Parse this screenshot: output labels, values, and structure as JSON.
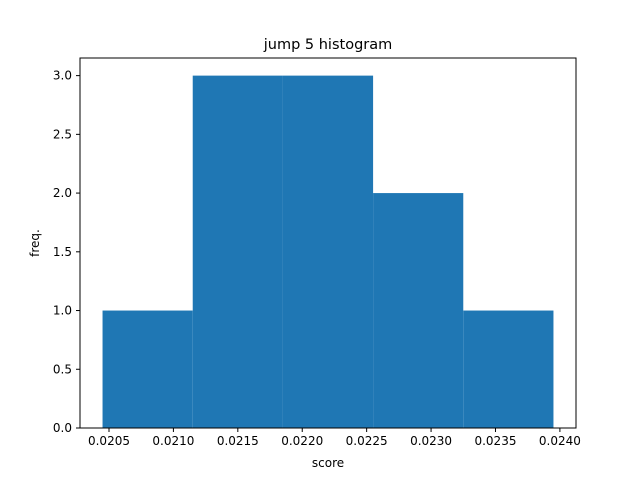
{
  "chart_data": {
    "type": "bar",
    "title": "jump 5 histogram",
    "xlabel": "score",
    "ylabel": "freq.",
    "bins": [
      {
        "start": 0.02045,
        "end": 0.02115,
        "count": 1
      },
      {
        "start": 0.02115,
        "end": 0.02185,
        "count": 3
      },
      {
        "start": 0.02185,
        "end": 0.02255,
        "count": 3
      },
      {
        "start": 0.02255,
        "end": 0.02325,
        "count": 2
      },
      {
        "start": 0.02325,
        "end": 0.02395,
        "count": 1
      }
    ],
    "xlim": [
      0.020275,
      0.024125
    ],
    "ylim": [
      0.0,
      3.15
    ],
    "xticks": [
      0.0205,
      0.021,
      0.0215,
      0.022,
      0.0225,
      0.023,
      0.0235,
      0.024
    ],
    "xtick_labels": [
      "0.0205",
      "0.0210",
      "0.0215",
      "0.0220",
      "0.0225",
      "0.0230",
      "0.0235",
      "0.0240"
    ],
    "yticks": [
      0.0,
      0.5,
      1.0,
      1.5,
      2.0,
      2.5,
      3.0
    ],
    "ytick_labels": [
      "0.0",
      "0.5",
      "1.0",
      "1.5",
      "2.0",
      "2.5",
      "3.0"
    ],
    "bar_color": "#1f77b4",
    "grid": false,
    "legend": "none"
  }
}
